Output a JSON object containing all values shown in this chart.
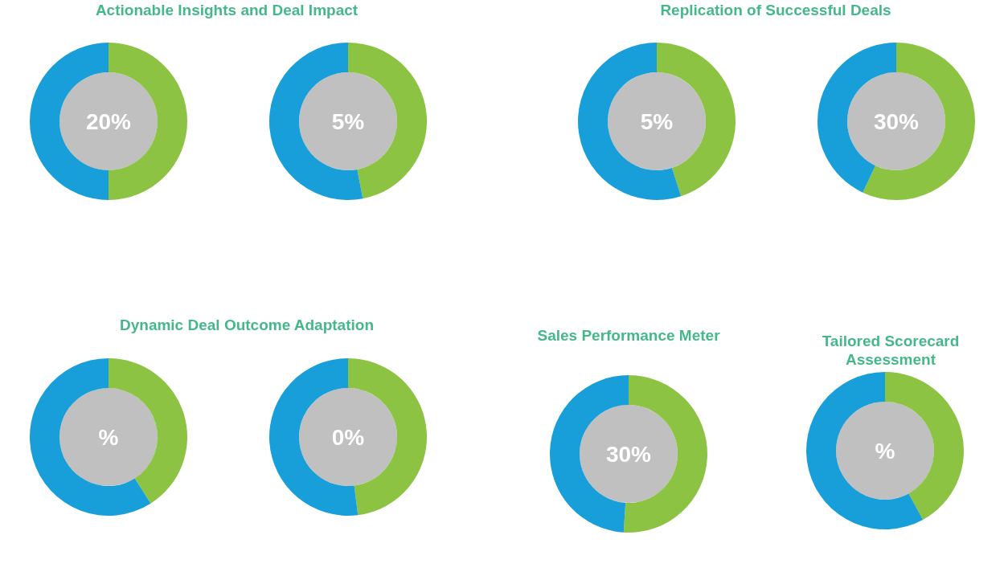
{
  "chart_data": [
    {
      "type": "donut",
      "title": "Actionable Insights and Deal Impact",
      "categories": [
        null,
        null
      ],
      "values": [
        50,
        50
      ],
      "colors": [
        "#8cc342",
        "#189fda"
      ],
      "annotations": [
        "20%"
      ]
    },
    {
      "type": "donut",
      "categories": [
        null,
        null
      ],
      "values": [
        47,
        53
      ],
      "colors": [
        "#8cc342",
        "#189fda"
      ],
      "annotations": [
        "5%"
      ]
    },
    {
      "type": "donut",
      "title": "Replication of Successful Deals",
      "categories": [
        null,
        null
      ],
      "values": [
        45,
        55
      ],
      "colors": [
        "#8cc342",
        "#189fda"
      ],
      "annotations": [
        "5%"
      ]
    },
    {
      "type": "donut",
      "categories": [
        null,
        null
      ],
      "values": [
        57,
        43
      ],
      "colors": [
        "#8cc342",
        "#189fda"
      ],
      "annotations": [
        "30%"
      ]
    },
    {
      "type": "donut",
      "title": "Dynamic Deal Outcome Adaptation",
      "categories": [
        null,
        null
      ],
      "values": [
        41,
        59
      ],
      "colors": [
        "#8cc342",
        "#189fda"
      ],
      "annotations": [
        "%"
      ]
    },
    {
      "type": "donut",
      "categories": [
        null,
        null
      ],
      "values": [
        48,
        52
      ],
      "colors": [
        "#8cc342",
        "#189fda"
      ],
      "annotations": [
        "0%"
      ]
    },
    {
      "type": "donut",
      "title": "Sales Performance Meter",
      "categories": [
        null,
        null
      ],
      "values": [
        51,
        49
      ],
      "colors": [
        "#8cc342",
        "#189fda"
      ],
      "annotations": [
        "30%"
      ]
    },
    {
      "type": "donut",
      "title": "Tailored Scorecard Assessment",
      "categories": [
        null,
        null
      ],
      "values": [
        42,
        58
      ],
      "colors": [
        "#8cc342",
        "#189fda"
      ],
      "annotations": [
        "%"
      ]
    }
  ]
}
